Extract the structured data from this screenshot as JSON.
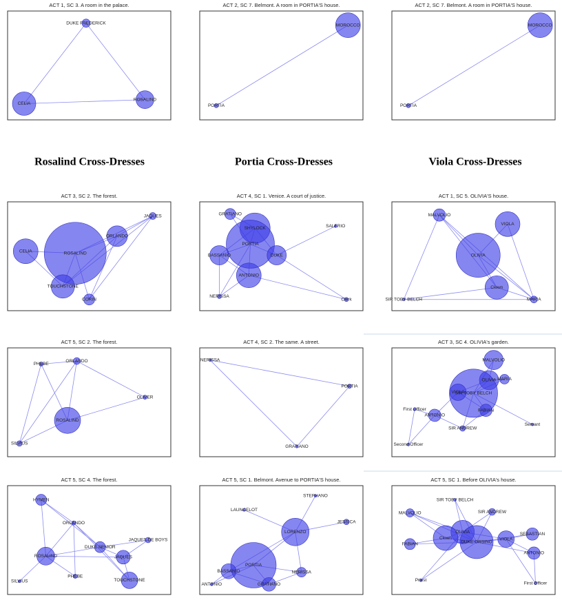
{
  "headings": [
    "Rosalind Cross-Dresses",
    "Portia Cross-Dresses",
    "Viola Cross-Dresses"
  ],
  "panels": [
    {
      "title": "ACT 1, SC 3. A room in the palace.",
      "nodes": [
        "DUKE FREDERICK",
        "CELIA",
        "ROSALIND"
      ]
    },
    {
      "title": "ACT 2, SC 7. Belmont. A room in PORTIA'S house.",
      "nodes": [
        "MOROCCO",
        "PORTIA"
      ]
    },
    {
      "title": "ACT 2, SC 7. Belmont. A room in PORTIA'S house.",
      "nodes": [
        "MOROCCO",
        "PORTIA"
      ]
    },
    {
      "title": "ACT 3, SC 2. The forest.",
      "nodes": [
        "JAQUES",
        "ORLANDO",
        "CELIA",
        "ROSALIND",
        "TOUCHSTONE",
        "CORIN"
      ]
    },
    {
      "title": "ACT 4, SC 1. Venice. A court of justice.",
      "nodes": [
        "GRATIANO",
        "SHYLOCK",
        "PORTIA",
        "BASSANIO",
        "DUKE",
        "ANTONIO",
        "NERISSA",
        "SALERIO",
        "Clerk"
      ]
    },
    {
      "title": "ACT 1, SC 5. OLIVIA'S house.",
      "nodes": [
        "MALVOLIO",
        "VIOLA",
        "OLIVIA",
        "Clown",
        "SIR TOBY BELCH",
        "MARIA"
      ]
    },
    {
      "title": "ACT 5, SC 2. The forest.",
      "nodes": [
        "PHEBE",
        "ORLANDO",
        "OLIVER",
        "ROSALIND",
        "SILVIUS"
      ]
    },
    {
      "title": "ACT 4, SC 2. The same. A street.",
      "nodes": [
        "NERISSA",
        "PORTIA",
        "GRATIANO"
      ]
    },
    {
      "title": "ACT 3, SC 4. OLIVIA's garden.",
      "nodes": [
        "MALVOLIO",
        "OLIVIA",
        "MARIA",
        "SIR TOBY BELCH",
        "VIOLA",
        "FABIAN",
        "First Officer",
        "ANTONIO",
        "SIR ANDREW",
        "Servant",
        "Second Officer"
      ]
    },
    {
      "title": "ACT 5, SC 4. The forest.",
      "nodes": [
        "HYMEN",
        "ORLANDO",
        "DUKE SENIOR",
        "JAQUES DE BOYS",
        "ROSALIND",
        "JAQUES",
        "PHEBE",
        "TOUCHSTONE",
        "SILVIUS"
      ]
    },
    {
      "title": "ACT 5, SC 1. Belmont. Avenue to PORTIA'S house.",
      "nodes": [
        "STEPHANO",
        "LAUNCELOT",
        "JESSICA",
        "LORENZO",
        "PORTIA",
        "BASSANIO",
        "NERISSA",
        "ANTONIO",
        "GRATIANO"
      ]
    },
    {
      "title": "ACT 5, SC 1. Before OLIVIA's house.",
      "nodes": [
        "SIR TOBY BELCH",
        "MALVOLIO",
        "SIR ANDREW",
        "SEBASTIAN",
        "OLIVIA",
        "Clown",
        "DUKE ORSINO",
        "VIOLA",
        "FABIAN",
        "ANTONIO",
        "Priest",
        "First Officer"
      ]
    }
  ]
}
